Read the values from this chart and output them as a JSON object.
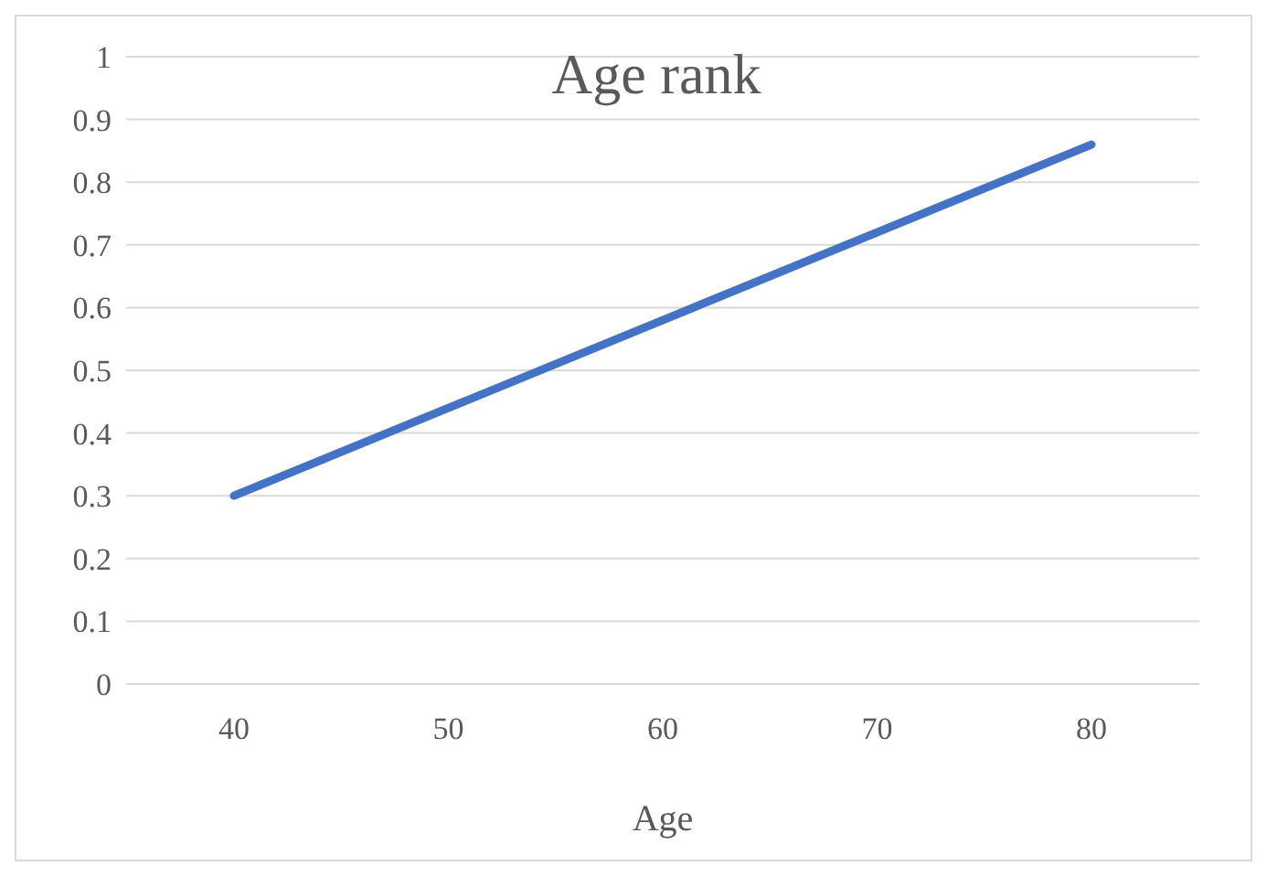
{
  "chart_data": {
    "type": "line",
    "title": "Age rank",
    "xlabel": "Age",
    "categories": [
      "40",
      "50",
      "60",
      "70",
      "80"
    ],
    "series": [
      {
        "color": "#4472c4",
        "values": [
          0.3,
          0.44,
          0.58,
          0.72,
          0.86
        ]
      }
    ],
    "ylim": [
      0,
      1
    ],
    "yticks": [
      0,
      0.1,
      0.2,
      0.3,
      0.4,
      0.5,
      0.6,
      0.7,
      0.8,
      0.9,
      1
    ],
    "grid": "y",
    "marker": "none",
    "line_style": "solid",
    "legend": false
  }
}
